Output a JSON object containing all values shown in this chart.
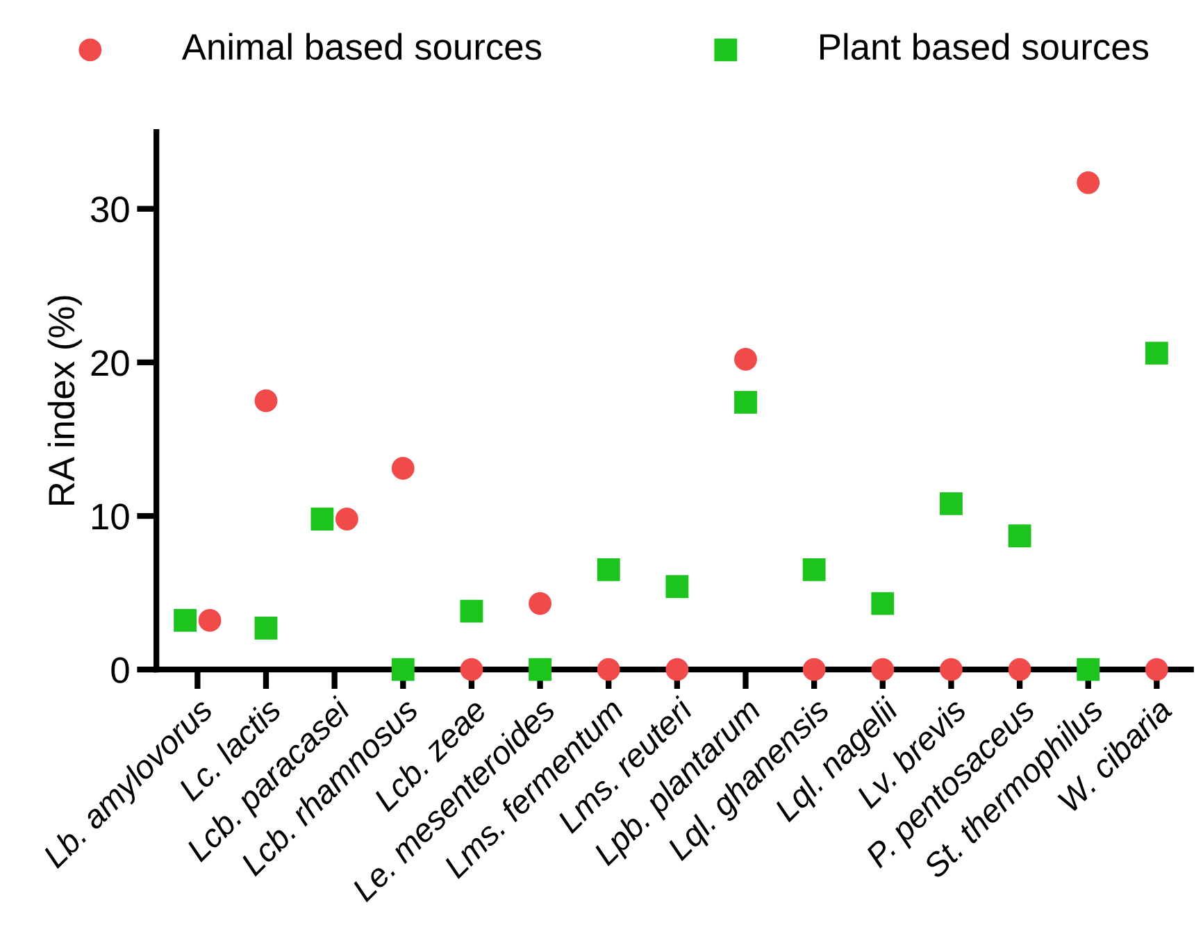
{
  "chart_data": {
    "type": "scatter",
    "ylabel": "RA index (%)",
    "categories": [
      "Lb. amylovorus",
      "Lc. lactis",
      "Lcb. paracasei",
      "Lcb. rhamnosus",
      "Lcb. zeae",
      "Le. mesenteroides",
      "Lms. fermentum",
      "Lms. reuteri",
      "Lpb. plantarum",
      "Lql. ghanensis",
      "Lql. nagelii",
      "Lv. brevis",
      "P. pentosaceus",
      "St. thermophilus",
      "W. cibaria"
    ],
    "series": [
      {
        "name": "Animal based sources",
        "color": "#f04a4a",
        "marker": "circle",
        "values": [
          3.2,
          17.5,
          9.8,
          13.1,
          0,
          4.3,
          0,
          0,
          20.2,
          0,
          0,
          0,
          0,
          31.7,
          0
        ]
      },
      {
        "name": "Plant based sources",
        "color": "#1ec41e",
        "marker": "square",
        "values": [
          3.2,
          2.7,
          9.8,
          0,
          3.8,
          0,
          6.5,
          5.4,
          17.4,
          6.5,
          4.3,
          10.8,
          8.7,
          0,
          20.6
        ]
      }
    ],
    "ylim": [
      0,
      35
    ],
    "yticks": [
      0,
      10,
      20,
      30
    ],
    "grid": false,
    "legend": "top"
  }
}
